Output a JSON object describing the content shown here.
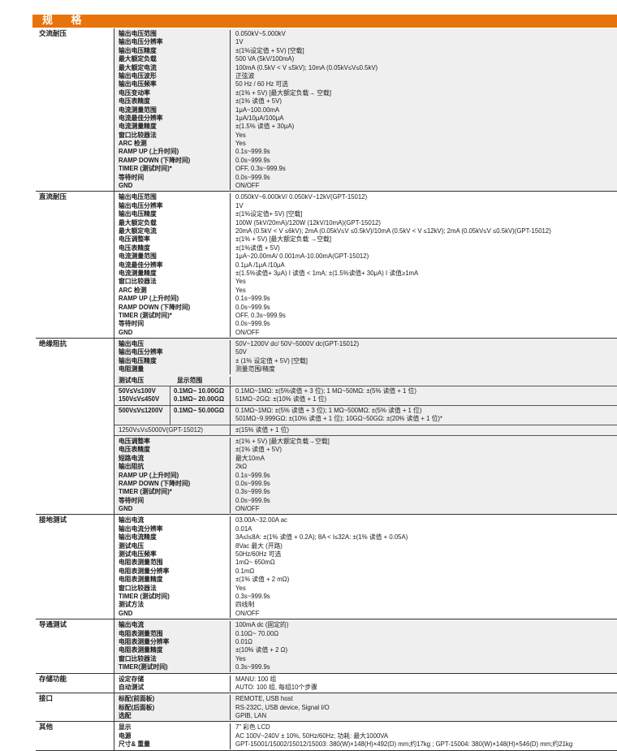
{
  "title": "规 格",
  "colors": {
    "header_bar": "#e8730a",
    "alt_row": "#efefef"
  },
  "sections": [
    {
      "category": "交流耐压",
      "gray": true,
      "rows": [
        {
          "label": "输出电压范围",
          "value": "0.050kV~5.000kV"
        },
        {
          "label": "输出电压分辨率",
          "value": "1V"
        },
        {
          "label": "输出电压精度",
          "value": "±(1%设定值 + 5V) [空载]"
        },
        {
          "label": "最大额定负载",
          "value": "500 VA (5kV/100mA)"
        },
        {
          "label": "最大额定电流",
          "value": "100mA (0.5kV < V ≤5kV); 10mA (0.05kV≤V≤0.5kV)"
        },
        {
          "label": "输出电压波形",
          "value": "正弦波"
        },
        {
          "label": "输出电压频率",
          "value": "50 Hz / 60 Hz 可选"
        },
        {
          "label": "电压变动率",
          "value": "±(1% + 5V) [最大额定负载→ 空载]"
        },
        {
          "label": "电压表精度",
          "value": "±(1% 读值 + 5V)"
        },
        {
          "label": "电流测量范围",
          "value": "1μA~100.00mA"
        },
        {
          "label": "电流最佳分辨率",
          "value": "1μA/10μA/100μA"
        },
        {
          "label": "电流测量精度",
          "value": "±(1.5% 读值 + 30μA)"
        },
        {
          "label": "窗口比较器法",
          "value": "Yes"
        },
        {
          "label": "ARC 检测",
          "value": "Yes"
        },
        {
          "label": "RAMP UP (上升时间)",
          "value": "0.1s~999.9s"
        },
        {
          "label": "RAMP DOWN (下降时间)",
          "value": "0.0s~999.9s"
        },
        {
          "label": "TIMER (测试时间)*",
          "value": "OFF, 0.3s~999.9s"
        },
        {
          "label": "等待时间",
          "value": "0.0s~999.9s"
        },
        {
          "label": "GND",
          "value": "ON/OFF"
        }
      ]
    },
    {
      "category": "直流耐压",
      "gray": false,
      "rows": [
        {
          "label": "输出电压范围",
          "value": "0.050kV~6.000kV/ 0.050kV~12kV(GPT-15012)"
        },
        {
          "label": "输出电压分辨率",
          "value": "1V"
        },
        {
          "label": "输出电压精度",
          "value": "±(1%设定值+ 5V) [空载]"
        },
        {
          "label": "最大额定负载",
          "value": "100W (5kV/20mA)/120W (12kV/10mA)(GPT-15012)"
        },
        {
          "label": "最大额定电流",
          "value": "20mA (0.5kV < V ≤6kV); 2mA (0.05kV≤V ≤0.5kV)/10mA (0.5kV < V ≤12kV); 2mA (0.05kV≤V ≤0.5kV)(GPT-15012)"
        },
        {
          "label": "电压调整率",
          "value": "±(1% + 5V) [最大额定负载 →空载]"
        },
        {
          "label": "电压表精度",
          "value": "±(1%读值 + 5V)"
        },
        {
          "label": "电流测量范围",
          "value": "1μA~20.00mA/ 0.001mA-10.00mA(GPT-15012)"
        },
        {
          "label": "电流最佳分辨率",
          "value": "0.1μA /1μA /10μA"
        },
        {
          "label": "电流测量精度",
          "value": "±(1.5%读值+ 3μA) I 读值 < 1mA; ±(1.5%读值+ 30μA) I 读值≥1mA"
        },
        {
          "label": "窗口比较器法",
          "value": "Yes"
        },
        {
          "label": "ARC 检测",
          "value": "Yes"
        },
        {
          "label": "RAMP UP (上升时间)",
          "value": "0.1s~999.9s"
        },
        {
          "label": "RAMP DOWN (下降时间)",
          "value": "0.0s~999.9s"
        },
        {
          "label": "TIMER (测试时间)*",
          "value": "OFF, 0.3s~999.9s"
        },
        {
          "label": "等待时间",
          "value": "0.0s~999.9s"
        },
        {
          "label": "GND",
          "value": "ON/OFF"
        }
      ]
    },
    {
      "category": "绝缘阻抗",
      "gray": true,
      "rows": [
        {
          "label": "输出电压",
          "value": "50V~1200V dc/ 50V~5000V dc(GPT-15012)"
        },
        {
          "label": "输出电压分辨率",
          "value": "50V"
        },
        {
          "label": "输出电压精度",
          "value": "± (1% 设定值 + 5V) [空载]"
        },
        {
          "label": "电阻测量",
          "value": "测量范围/精度"
        }
      ],
      "range_header": {
        "test_voltage": "测试电压",
        "display_range": "显示范围"
      },
      "ranges": [
        {
          "voltage": [
            "50V≤V≤100V",
            "150V≤V≤450V"
          ],
          "display": [
            "0.1MΩ~ 10.00GΩ",
            "0.1MΩ~ 20.00GΩ"
          ],
          "accuracy": [
            "0.1MΩ~1MΩ: ±(5%读值 + 3 位); 1 MΩ~50MΩ: ±(5% 读值 + 1 位)",
            "51MΩ~2GΩ: ±(10% 读值 + 1 位)"
          ]
        },
        {
          "voltage": [
            "500V≤V≤1200V"
          ],
          "display": [
            "0.1MΩ~ 50.00GΩ"
          ],
          "accuracy": [
            "0.1MΩ~1MΩ: ±(5% 读值 + 3 位); 1 MΩ~500MΩ: ±(5% 读值 + 1 位)",
            "501MΩ~9.999GΩ: ±(10% 读值 + 1 位); 10GΩ~50GΩ: ±(20% 读值 + 1 位)*"
          ]
        }
      ],
      "wide_range": {
        "voltage": "1250V≤V≤5000V(GPT-15012)",
        "accuracy": "±(15% 读值 + 1 位)"
      },
      "rows_after": [
        {
          "label": "电压调整率",
          "value": "±(1% + 5V) [最大额定负载→空载]"
        },
        {
          "label": "电压表精度",
          "value": "±(1% 读值 + 5V)"
        },
        {
          "label": "短路电流",
          "value": "最大10mA"
        },
        {
          "label": "输出阻抗",
          "value": "2kΩ"
        },
        {
          "label": "RAMP UP (上升时间)",
          "value": "0.1s~999.9s"
        },
        {
          "label": "RAMP DOWN (下降时间)",
          "value": "0.0s~999.9s"
        },
        {
          "label": "TIMER (测试时间)*",
          "value": "0.3s~999.9s"
        },
        {
          "label": "等待时间",
          "value": "0.0s~999.9s"
        },
        {
          "label": "GND",
          "value": "ON/OFF"
        }
      ]
    },
    {
      "category": "接地测试",
      "gray": false,
      "rows": [
        {
          "label": "输出电流",
          "value": "03.00A~32.00A ac"
        },
        {
          "label": "输出电流分辨率",
          "value": "0.01A"
        },
        {
          "label": "输出电流精度",
          "value": "3A≤I≤8A: ±(1% 读值 + 0.2A); 8A < I≤32A: ±(1% 读值 + 0.05A)"
        },
        {
          "label": "测试电压",
          "value": "8Vac 最大 (开路)"
        },
        {
          "label": "测试电压频率",
          "value": "50Hz/60Hz 可选"
        },
        {
          "label": "电阻表测量范围",
          "value": "1mΩ~ 650mΩ"
        },
        {
          "label": "电阻表测量分辨率",
          "value": "0.1mΩ"
        },
        {
          "label": "电阻表测量精度",
          "value": "±(1% 读值 + 2 mΩ)"
        },
        {
          "label": "窗口比较器法",
          "value": "Yes"
        },
        {
          "label": "TIMER (测试时间)",
          "value": "0.3s~999.9s"
        },
        {
          "label": "测试方法",
          "value": "四线制"
        },
        {
          "label": "GND",
          "value": "ON/OFF"
        }
      ]
    },
    {
      "category": "导通测试",
      "gray": true,
      "rows": [
        {
          "label": "输出电流",
          "value": "100mA dc (固定的)"
        },
        {
          "label": "电阻表测量范围",
          "value": "0.10Ω~ 70.00Ω"
        },
        {
          "label": "电阻表测量分辨率",
          "value": "0.01Ω"
        },
        {
          "label": "电阻表测量精度",
          "value": "±(10% 读值 + 2 Ω)"
        },
        {
          "label": "窗口比较器法",
          "value": "Yes"
        },
        {
          "label": "TIMER(测试时间)",
          "value": "0.3s~999.9s"
        }
      ]
    },
    {
      "category": "存储功能",
      "gray": false,
      "rows": [
        {
          "label": "设定存储",
          "value": "MANU: 100 组"
        },
        {
          "label": "自动测试",
          "value": "AUTO: 100 组, 每组10个步骤"
        }
      ]
    },
    {
      "category": "接口",
      "gray": true,
      "rows": [
        {
          "label": "标配(前面板)",
          "value": "REMOTE, USB host"
        },
        {
          "label": "标配(后面板)",
          "value": "RS-232C, USB device, Signal I/O"
        },
        {
          "label": "选配",
          "value": "GPIB, LAN"
        }
      ]
    },
    {
      "category": "其他",
      "gray": false,
      "rows": [
        {
          "label": "显示",
          "value": "7\" 彩色 LCD"
        },
        {
          "label": "电源",
          "value": "AC 100V~240V ± 10%, 50Hz/60Hz; 功耗: 最大1000VA"
        },
        {
          "label": "尺寸& 重量",
          "value": "GPT-15001/15002/15012/15003: 380(W)×148(H)×492(D) mm;约17kg ; GPT-15004: 380(W)×148(H)×546(D) mm;约21kg"
        }
      ]
    }
  ]
}
